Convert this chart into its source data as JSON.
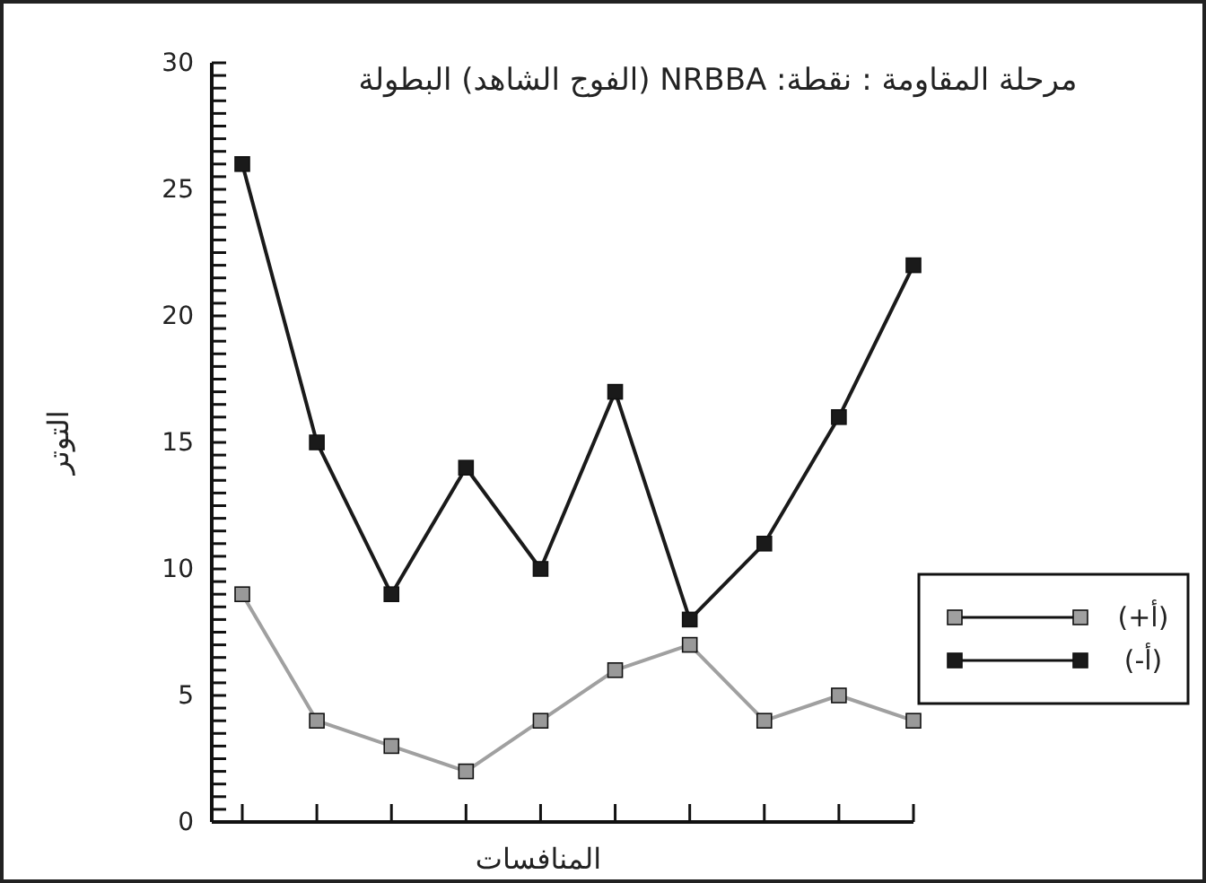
{
  "chart_data": {
    "type": "line",
    "title": "مرحلة المقاومة : نقطة: NRBBA (الفوج الشاهد) البطولة",
    "xlabel": "المنافسات",
    "ylabel": "التوتر",
    "categories": [
      null,
      null,
      null,
      null,
      null,
      null,
      null,
      null,
      null,
      null
    ],
    "series": [
      {
        "name": "(أ+)",
        "color": "#a0a0a0",
        "values": [
          9,
          4,
          3,
          2,
          4,
          6,
          7,
          4,
          5,
          4
        ]
      },
      {
        "name": "(أ-)",
        "color": "#1a1a1a",
        "values": [
          26,
          15,
          9,
          14,
          10,
          17,
          8,
          11,
          16,
          22
        ]
      }
    ],
    "ylim": [
      0,
      30
    ],
    "yticks": [
      0,
      {
        "value": 0.5,
        "label": null
      },
      {
        "value": 1,
        "label": null
      },
      {
        "value": 1.5,
        "label": null
      },
      {
        "value": 2,
        "label": null
      },
      {
        "value": 2.5,
        "label": null
      },
      {
        "value": 3,
        "label": null
      },
      {
        "value": 3.5,
        "label": null
      },
      {
        "value": 4,
        "label": null
      },
      {
        "value": 4.5,
        "label": null
      },
      5,
      {
        "value": 5.5,
        "label": null
      },
      {
        "value": 6,
        "label": null
      },
      {
        "value": 6.5,
        "label": null
      },
      {
        "value": 7,
        "label": null
      },
      {
        "value": 7.5,
        "label": null
      },
      {
        "value": 8,
        "label": null
      },
      {
        "value": 8.5,
        "label": null
      },
      {
        "value": 9,
        "label": null
      },
      {
        "value": 9.5,
        "label": null
      },
      10,
      {
        "value": 10.5,
        "label": null
      },
      {
        "value": 11,
        "label": null
      },
      {
        "value": 11.5,
        "label": null
      },
      {
        "value": 12,
        "label": null
      },
      {
        "value": 12.5,
        "label": null
      },
      {
        "value": 13,
        "label": null
      },
      {
        "value": 13.5,
        "label": null
      },
      {
        "value": 14,
        "label": null
      },
      {
        "value": 14.5,
        "label": null
      },
      15,
      {
        "value": 15.5,
        "label": null
      },
      {
        "value": 16,
        "label": null
      },
      {
        "value": 16.5,
        "label": null
      },
      {
        "value": 17,
        "label": null
      },
      {
        "value": 17.5,
        "label": null
      },
      {
        "value": 18,
        "label": null
      },
      {
        "value": 18.5,
        "label": null
      },
      {
        "value": 19,
        "label": null
      },
      {
        "value": 19.5,
        "label": null
      },
      20,
      {
        "value": 20.5,
        "label": null
      },
      {
        "value": 21,
        "label": null
      },
      {
        "value": 21.5,
        "label": null
      },
      {
        "value": 22,
        "label": null
      },
      {
        "value": 22.5,
        "label": null
      },
      {
        "value": 23,
        "label": null
      },
      {
        "value": 23.5,
        "label": null
      },
      {
        "value": 24,
        "label": null
      },
      {
        "value": 24.5,
        "label": null
      },
      25,
      {
        "value": 25.5,
        "label": null
      },
      {
        "value": 26,
        "label": null
      },
      {
        "value": 26.5,
        "label": null
      },
      {
        "value": 27,
        "label": null
      },
      {
        "value": 27.5,
        "label": null
      },
      {
        "value": 28,
        "label": null
      },
      {
        "value": 28.5,
        "label": null
      },
      {
        "value": 29,
        "label": null
      },
      {
        "value": 29.5,
        "label": null
      },
      30
    ],
    "grid": false,
    "legend": "bottom right",
    "marker": "square",
    "line_style": "solid"
  }
}
